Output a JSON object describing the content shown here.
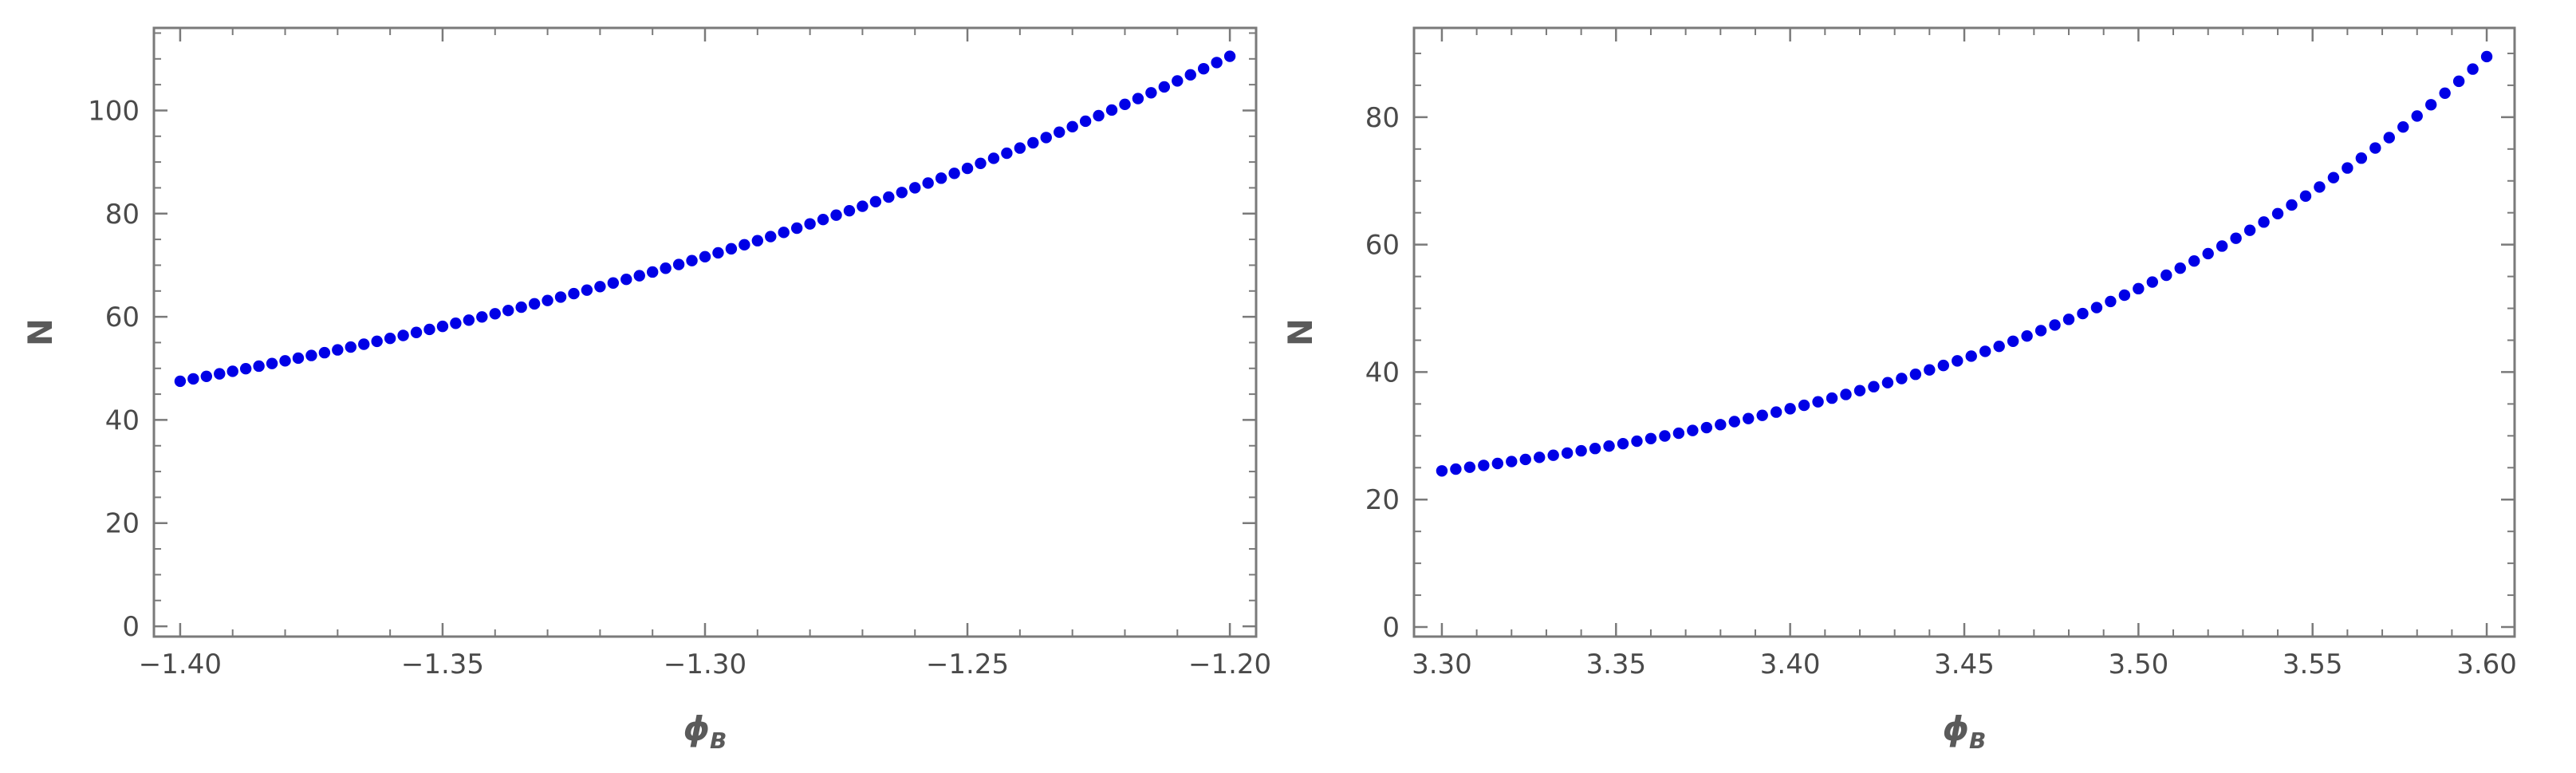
{
  "chart_data": [
    {
      "type": "scatter",
      "xlabel": "ϕ",
      "xlabel_sub": "B",
      "ylabel": "N",
      "xlim": [
        -1.405,
        -1.195
      ],
      "ylim": [
        -2,
        116
      ],
      "x_ticks": [
        -1.4,
        -1.35,
        -1.3,
        -1.25,
        -1.2
      ],
      "x_tick_labels": [
        "-1.40",
        "-1.35",
        "-1.30",
        "-1.25",
        "-1.20"
      ],
      "x_minor_step": 0.01,
      "y_ticks": [
        0,
        20,
        40,
        60,
        80,
        100
      ],
      "y_tick_labels": [
        "0",
        "20",
        "40",
        "60",
        "80",
        "100"
      ],
      "y_minor_step": 5,
      "point_color": "#0000e6",
      "curve": {
        "x_start": -1.4,
        "x_end": -1.2,
        "count": 81,
        "y_start": 47.5,
        "y_end": 110.5,
        "rate": 4.76
      },
      "series": [
        {
          "x": [],
          "y": []
        }
      ]
    },
    {
      "type": "scatter",
      "xlabel": "ϕ",
      "xlabel_sub": "B",
      "ylabel": "N",
      "xlim": [
        3.292,
        3.608
      ],
      "ylim": [
        -1.5,
        94
      ],
      "x_ticks": [
        3.3,
        3.35,
        3.4,
        3.45,
        3.5,
        3.55,
        3.6
      ],
      "x_tick_labels": [
        "3.30",
        "3.35",
        "3.40",
        "3.45",
        "3.50",
        "3.55",
        "3.60"
      ],
      "x_minor_step": 0.01,
      "y_ticks": [
        0,
        20,
        40,
        60,
        80
      ],
      "y_tick_labels": [
        "0",
        "20",
        "40",
        "60",
        "80"
      ],
      "y_minor_step": 5,
      "point_color": "#0000e6",
      "curve": {
        "x_start": 3.3,
        "x_end": 3.6,
        "count": 76,
        "y_start": 24.5,
        "y_end": 89.5,
        "rate": 6.59
      },
      "series": [
        {
          "x": [],
          "y": []
        }
      ]
    }
  ]
}
